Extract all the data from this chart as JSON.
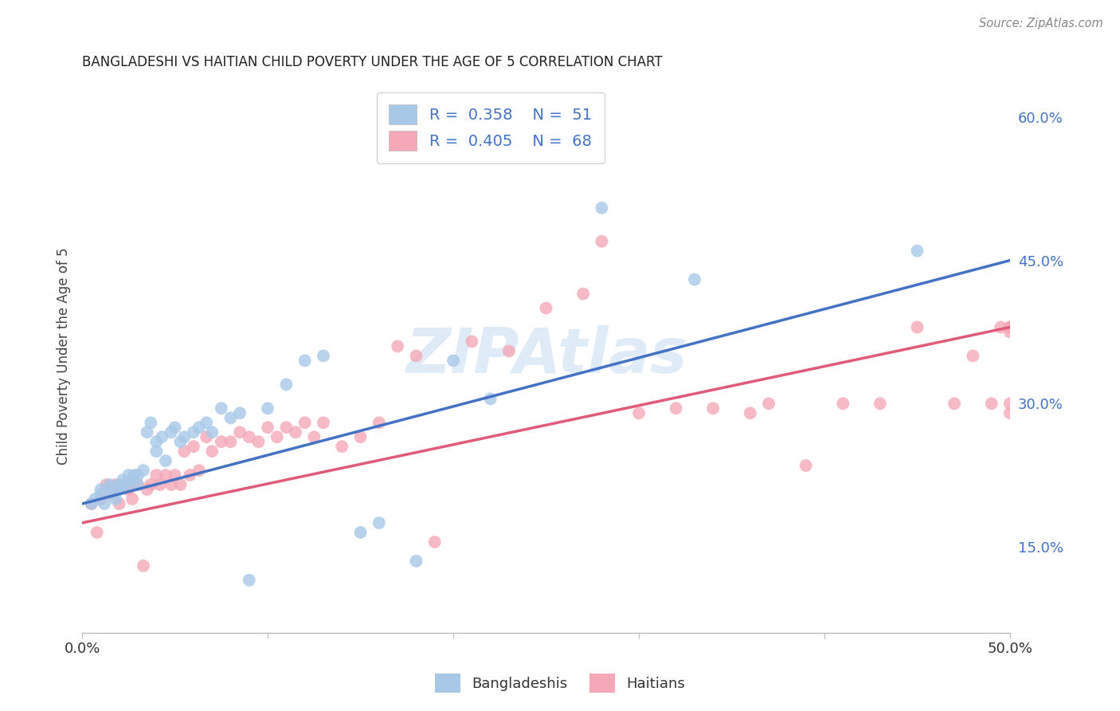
{
  "title": "BANGLADESHI VS HAITIAN CHILD POVERTY UNDER THE AGE OF 5 CORRELATION CHART",
  "source": "Source: ZipAtlas.com",
  "ylabel": "Child Poverty Under the Age of 5",
  "xlim": [
    0.0,
    0.5
  ],
  "ylim": [
    0.06,
    0.64
  ],
  "yticks_right": [
    0.15,
    0.3,
    0.45,
    0.6
  ],
  "yticklabels_right": [
    "15.0%",
    "30.0%",
    "45.0%",
    "60.0%"
  ],
  "watermark": "ZIPAtlas",
  "blue_color": "#a8c8e8",
  "pink_color": "#f4a8b8",
  "blue_line_color": "#4472c4",
  "pink_line_color": "#e05a7a",
  "background_color": "#ffffff",
  "grid_color": "#d0d0d0",
  "blue_scatter_x": [
    0.005,
    0.007,
    0.01,
    0.01,
    0.012,
    0.015,
    0.015,
    0.017,
    0.018,
    0.02,
    0.02,
    0.022,
    0.022,
    0.025,
    0.025,
    0.027,
    0.028,
    0.03,
    0.03,
    0.033,
    0.035,
    0.037,
    0.04,
    0.04,
    0.043,
    0.045,
    0.048,
    0.05,
    0.053,
    0.055,
    0.06,
    0.063,
    0.067,
    0.07,
    0.075,
    0.08,
    0.085,
    0.09,
    0.1,
    0.11,
    0.12,
    0.13,
    0.15,
    0.16,
    0.18,
    0.2,
    0.22,
    0.25,
    0.28,
    0.33,
    0.45
  ],
  "blue_scatter_y": [
    0.195,
    0.2,
    0.205,
    0.21,
    0.195,
    0.21,
    0.215,
    0.205,
    0.2,
    0.215,
    0.21,
    0.215,
    0.22,
    0.225,
    0.215,
    0.22,
    0.225,
    0.225,
    0.215,
    0.23,
    0.27,
    0.28,
    0.26,
    0.25,
    0.265,
    0.24,
    0.27,
    0.275,
    0.26,
    0.265,
    0.27,
    0.275,
    0.28,
    0.27,
    0.295,
    0.285,
    0.29,
    0.115,
    0.295,
    0.32,
    0.345,
    0.35,
    0.165,
    0.175,
    0.135,
    0.345,
    0.305,
    0.575,
    0.505,
    0.43,
    0.46
  ],
  "pink_scatter_x": [
    0.005,
    0.008,
    0.01,
    0.013,
    0.015,
    0.018,
    0.02,
    0.022,
    0.025,
    0.025,
    0.027,
    0.03,
    0.033,
    0.035,
    0.037,
    0.04,
    0.042,
    0.045,
    0.048,
    0.05,
    0.053,
    0.055,
    0.058,
    0.06,
    0.063,
    0.067,
    0.07,
    0.075,
    0.08,
    0.085,
    0.09,
    0.095,
    0.1,
    0.105,
    0.11,
    0.115,
    0.12,
    0.125,
    0.13,
    0.14,
    0.15,
    0.16,
    0.17,
    0.18,
    0.19,
    0.21,
    0.23,
    0.25,
    0.27,
    0.3,
    0.34,
    0.37,
    0.39,
    0.41,
    0.43,
    0.45,
    0.47,
    0.48,
    0.49,
    0.495,
    0.5,
    0.5,
    0.5,
    0.5,
    0.5,
    0.28,
    0.32,
    0.36
  ],
  "pink_scatter_y": [
    0.195,
    0.165,
    0.2,
    0.215,
    0.205,
    0.215,
    0.195,
    0.215,
    0.215,
    0.21,
    0.2,
    0.215,
    0.13,
    0.21,
    0.215,
    0.225,
    0.215,
    0.225,
    0.215,
    0.225,
    0.215,
    0.25,
    0.225,
    0.255,
    0.23,
    0.265,
    0.25,
    0.26,
    0.26,
    0.27,
    0.265,
    0.26,
    0.275,
    0.265,
    0.275,
    0.27,
    0.28,
    0.265,
    0.28,
    0.255,
    0.265,
    0.28,
    0.36,
    0.35,
    0.155,
    0.365,
    0.355,
    0.4,
    0.415,
    0.29,
    0.295,
    0.3,
    0.235,
    0.3,
    0.3,
    0.38,
    0.3,
    0.35,
    0.3,
    0.38,
    0.29,
    0.375,
    0.3,
    0.38,
    0.38,
    0.47,
    0.295,
    0.29
  ]
}
